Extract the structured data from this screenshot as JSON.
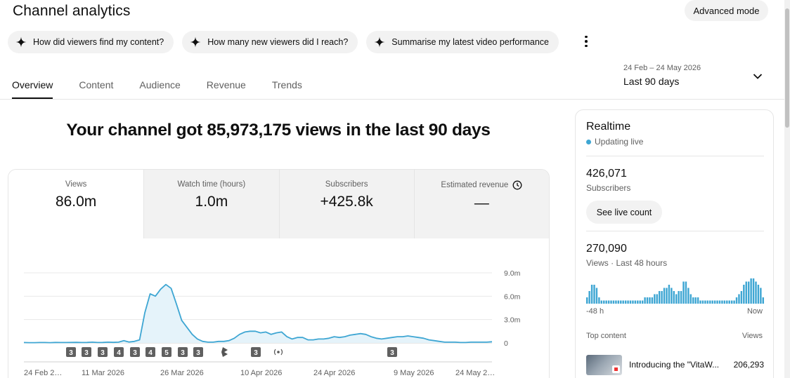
{
  "header": {
    "title": "Channel analytics",
    "advanced_mode": "Advanced mode"
  },
  "chips": [
    {
      "label": "How did viewers find my content?",
      "icon": "sparkle-icon"
    },
    {
      "label": "How many new viewers did I reach?",
      "icon": "sparkle-icon"
    },
    {
      "label": "Summarise my latest video performance",
      "icon": "sparkle-icon"
    }
  ],
  "tabs": [
    {
      "label": "Overview",
      "active": true
    },
    {
      "label": "Content",
      "active": false
    },
    {
      "label": "Audience",
      "active": false
    },
    {
      "label": "Revenue",
      "active": false
    },
    {
      "label": "Trends",
      "active": false
    }
  ],
  "date_range": {
    "range": "24 Feb – 24 May 2026",
    "period": "Last 90 days"
  },
  "headline": "Your channel got 85,973,175 views in the last 90 days",
  "metrics": [
    {
      "label": "Views",
      "value": "86.0m"
    },
    {
      "label": "Watch time (hours)",
      "value": "1.0m"
    },
    {
      "label": "Subscribers",
      "value": "+425.8k"
    },
    {
      "label": "Estimated revenue",
      "value": "—"
    }
  ],
  "chart_data": {
    "type": "area",
    "title": "",
    "xlabel": "",
    "ylabel": "",
    "ylim": [
      0,
      9000000
    ],
    "ytick_labels": [
      "0",
      "3.0m",
      "6.0m",
      "9.0m"
    ],
    "yticks": [
      0,
      3000000,
      6000000,
      9000000
    ],
    "xtick_labels": [
      "24 Feb 2…",
      "11 Mar 2026",
      "26 Mar 2026",
      "10 Apr 2026",
      "24 Apr 2026",
      "9 May 2026",
      "24 May 2…"
    ],
    "series": [
      {
        "values": [
          0.05,
          0.04,
          0.04,
          0.05,
          0.05,
          0.04,
          0.06,
          0.05,
          0.05,
          0.06,
          0.07,
          0.05,
          0.06,
          0.1,
          0.05,
          0.06,
          0.1,
          0.07,
          0.1,
          0.3,
          0.12,
          0.2,
          0.4,
          3.9,
          6.3,
          6.0,
          6.9,
          7.5,
          7.0,
          5.0,
          2.9,
          2.0,
          1.1,
          0.5,
          0.2,
          0.1,
          0.1,
          0.2,
          0.2,
          0.3,
          0.6,
          1.1,
          1.4,
          1.5,
          1.5,
          1.3,
          1.4,
          1.1,
          1.3,
          1.4,
          0.8,
          0.5,
          0.7,
          0.7,
          0.4,
          0.4,
          0.5,
          0.5,
          0.6,
          0.8,
          0.7,
          0.8,
          1.0,
          1.1,
          1.2,
          1.1,
          0.8,
          0.6,
          0.5,
          0.6,
          0.7,
          0.8,
          0.8,
          0.9,
          0.8,
          0.7,
          0.6,
          0.4,
          0.3,
          0.2,
          0.1,
          0.1,
          0.1,
          0.05,
          0.05,
          0.1,
          0.1,
          0.1,
          0.1,
          0.15
        ]
      }
    ],
    "markers": [
      "3",
      "3",
      "3",
      "4",
      "3",
      "4",
      "5",
      "3",
      "3",
      "shorts",
      "3",
      "live",
      "3"
    ]
  },
  "realtime": {
    "title": "Realtime",
    "status": "Updating live",
    "subscribers_value": "426,071",
    "subscribers_label": "Subscribers",
    "see_live_count": "See live count",
    "views_value": "270,090",
    "views_label": "Views · Last 48 hours",
    "axis_start": "-48 h",
    "axis_end": "Now",
    "bars": [
      2,
      4,
      6,
      6,
      5,
      2,
      1,
      1,
      1,
      1,
      1,
      1,
      1,
      1,
      1,
      1,
      1,
      1,
      1,
      1,
      1,
      1,
      1,
      1,
      2,
      2,
      2,
      2,
      3,
      3,
      4,
      4,
      5,
      5,
      6,
      5,
      4,
      3,
      4,
      4,
      7,
      7,
      5,
      3,
      2,
      2,
      2,
      1,
      1,
      1,
      1,
      1,
      1,
      1,
      1,
      1,
      1,
      1,
      1,
      1,
      1,
      1,
      2,
      3,
      4,
      6,
      7,
      7,
      8,
      8,
      7,
      6,
      5,
      2
    ],
    "top_content_label": "Top content",
    "views_column_label": "Views",
    "top_video": {
      "title": "Introducing the \"VitaW...",
      "views": "206,293"
    }
  }
}
